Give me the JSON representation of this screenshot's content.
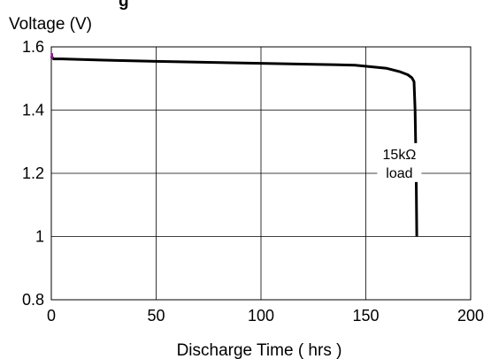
{
  "chart_data": {
    "type": "line",
    "title_partial": "g",
    "ylabel": "Voltage (V)",
    "xlabel": "Discharge Time ( hrs )",
    "xlim": [
      0,
      200
    ],
    "ylim": [
      0.8,
      1.6
    ],
    "x_ticks": [
      0,
      50,
      100,
      150,
      200
    ],
    "x_tick_labels": [
      "0",
      "50",
      "100",
      "150",
      "200"
    ],
    "y_ticks": [
      0.8,
      1.0,
      1.2,
      1.4,
      1.6
    ],
    "y_tick_labels": [
      "0.8",
      "1",
      "1.2",
      "1.4",
      "1.6"
    ],
    "grid": true,
    "annotation": {
      "line1": "15kΩ",
      "line2": "load",
      "x": 166,
      "y": 1.22
    },
    "series": [
      {
        "color": "#000000",
        "x": [
          0,
          1,
          5,
          25,
          50,
          75,
          100,
          125,
          145,
          160,
          166,
          170,
          172,
          173,
          173.5,
          174,
          174.3
        ],
        "y": [
          1.57,
          1.562,
          1.562,
          1.558,
          1.554,
          1.551,
          1.548,
          1.545,
          1.542,
          1.532,
          1.522,
          1.512,
          1.502,
          1.49,
          1.4,
          1.2,
          1.0
        ]
      }
    ]
  }
}
